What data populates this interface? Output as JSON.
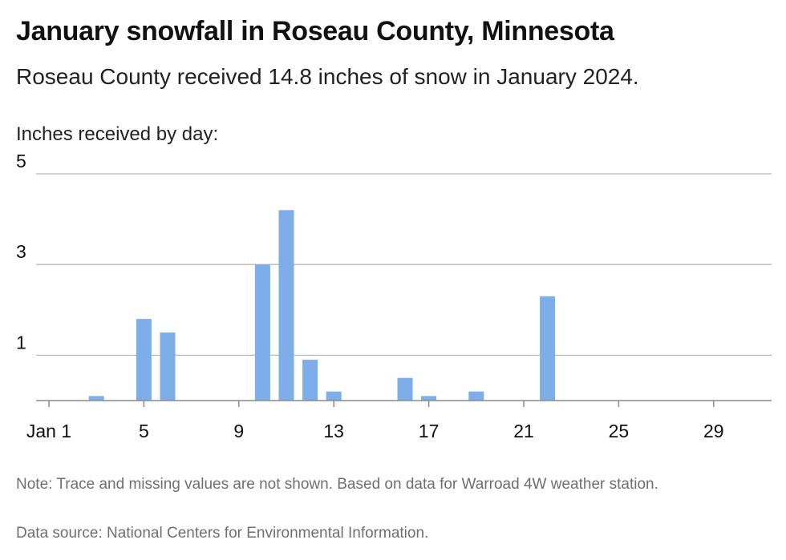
{
  "header": {
    "title": "January snowfall in Roseau County, Minnesota",
    "subtitle": "Roseau County received 14.8 inches of snow in January 2024."
  },
  "footer": {
    "note": "Note: Trace and missing values are not shown. Based on data for Warroad 4W weather station.",
    "source": "Data source: National Centers for Environmental Information."
  },
  "chart_data": {
    "type": "bar",
    "title": "",
    "ylabel": "Inches received by day:",
    "xlabel": "",
    "bar_color": "#7eaeea",
    "grid": true,
    "xlim": [
      1,
      31
    ],
    "ylim": [
      0,
      5
    ],
    "y_ticks": [
      1,
      3,
      5
    ],
    "x_tick_values": [
      1,
      5,
      9,
      13,
      17,
      21,
      25,
      29
    ],
    "x_tick_labels": [
      "Jan 1",
      "5",
      "9",
      "13",
      "17",
      "21",
      "25",
      "29"
    ],
    "days": [
      3,
      5,
      6,
      10,
      11,
      12,
      13,
      16,
      17,
      19,
      22
    ],
    "values": [
      0.1,
      1.8,
      1.5,
      3.0,
      4.2,
      0.9,
      0.2,
      0.5,
      0.1,
      0.2,
      2.3
    ]
  }
}
